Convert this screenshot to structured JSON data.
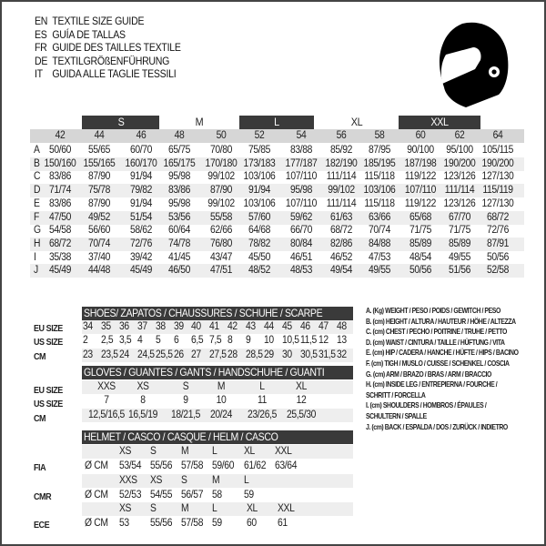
{
  "titles": [
    {
      "code": "EN",
      "text": "TEXTILE SIZE GUIDE"
    },
    {
      "code": "ES",
      "text": "GUÍA DE TALLAS"
    },
    {
      "code": "FR",
      "text": "GUIDE DES TAILLES TEXTILE"
    },
    {
      "code": "DE",
      "text": "TEXTILGRÖßENFÜHRUNG"
    },
    {
      "code": "IT",
      "text": "GUIDA ALLE TAGLIE TESSILI"
    }
  ],
  "icon": "helmet-icon",
  "colors": {
    "dark": "#3a3a3a",
    "grey": "#d6d6d6",
    "light": "#eeeeee"
  },
  "textile": {
    "size_groups": [
      "S",
      "M",
      "L",
      "XL",
      "XXL"
    ],
    "sizes": [
      "42",
      "44",
      "46",
      "48",
      "50",
      "52",
      "54",
      "56",
      "58",
      "60",
      "62",
      "64"
    ],
    "rows": [
      {
        "letter": "A",
        "values": [
          "50/60",
          "55/65",
          "60/70",
          "65/75",
          "70/80",
          "75/85",
          "83/88",
          "85/92",
          "87/95",
          "90/100",
          "95/100",
          "105/115"
        ]
      },
      {
        "letter": "B",
        "values": [
          "150/160",
          "155/165",
          "160/170",
          "165/175",
          "170/180",
          "173/183",
          "177/187",
          "182/190",
          "185/195",
          "187/198",
          "190/200",
          "190/200"
        ]
      },
      {
        "letter": "C",
        "values": [
          "83/86",
          "87/90",
          "91/94",
          "95/98",
          "99/102",
          "103/106",
          "107/110",
          "111/114",
          "115/118",
          "119/122",
          "123/126",
          "127/130"
        ]
      },
      {
        "letter": "D",
        "values": [
          "71/74",
          "75/78",
          "79/82",
          "83/86",
          "87/90",
          "91/94",
          "95/98",
          "99/102",
          "103/106",
          "107/110",
          "111/114",
          "115/119"
        ]
      },
      {
        "letter": "E",
        "values": [
          "83/86",
          "87/90",
          "91/94",
          "95/98",
          "99/102",
          "103/106",
          "107/110",
          "111/114",
          "115/118",
          "119/122",
          "123/126",
          "127/130"
        ]
      },
      {
        "letter": "F",
        "values": [
          "47/50",
          "49/52",
          "51/54",
          "53/56",
          "55/58",
          "57/60",
          "59/62",
          "61/63",
          "63/66",
          "65/68",
          "67/70",
          "68/72"
        ]
      },
      {
        "letter": "G",
        "values": [
          "54/58",
          "56/60",
          "58/62",
          "60/64",
          "62/66",
          "64/68",
          "66/70",
          "68/72",
          "70/74",
          "71/75",
          "71/75",
          "72/76"
        ]
      },
      {
        "letter": "H",
        "values": [
          "68/72",
          "70/74",
          "72/76",
          "74/78",
          "76/80",
          "78/82",
          "80/84",
          "82/86",
          "84/88",
          "85/89",
          "85/89",
          "87/91"
        ]
      },
      {
        "letter": "I",
        "values": [
          "35/38",
          "37/40",
          "39/42",
          "41/45",
          "43/47",
          "45/50",
          "46/51",
          "46/52",
          "47/53",
          "48/54",
          "49/55",
          "50/56"
        ]
      },
      {
        "letter": "J",
        "values": [
          "45/49",
          "44/48",
          "45/49",
          "46/50",
          "47/51",
          "48/52",
          "48/53",
          "49/54",
          "49/55",
          "50/56",
          "51/56",
          "52/58"
        ]
      }
    ]
  },
  "shoes": {
    "title": "SHOES/ ZAPATOS / CHAUSSURES / SCHUHE / SCARPE",
    "rows": [
      {
        "label": "EU SIZE",
        "values": [
          "34",
          "35",
          "36",
          "37",
          "38",
          "39",
          "40",
          "41",
          "42",
          "43",
          "44",
          "45",
          "46",
          "47",
          "48"
        ]
      },
      {
        "label": "US SIZE",
        "values": [
          "2",
          "2,5",
          "3,5",
          "4",
          "5",
          "6",
          "6,5",
          "7,5",
          "8",
          "9",
          "10",
          "10,5",
          "11,5",
          "12",
          "13"
        ]
      },
      {
        "label": "CM",
        "values": [
          "23",
          "23,5",
          "24",
          "24,5",
          "25,5",
          "26",
          "27",
          "27,5",
          "28",
          "28,5",
          "29",
          "30",
          "30,5",
          "31,5",
          "32"
        ]
      }
    ]
  },
  "gloves": {
    "title": "GLOVES / GUANTES / GANTS / HANDSCHUHE / GUANTI",
    "rows": [
      {
        "label": "EU SIZE",
        "values": [
          "XXS",
          "XS",
          "S",
          "M",
          "L",
          "XL"
        ]
      },
      {
        "label": "US SIZE",
        "values": [
          "7",
          "8",
          "9",
          "10",
          "11",
          "12"
        ]
      },
      {
        "label": "CM",
        "values": [
          "12,5/16,5",
          "16,5/19",
          "18/21,5",
          "20/24",
          "23/26,5",
          "25,5/30"
        ]
      }
    ]
  },
  "helmet": {
    "title": "HELMET / CASCO / CASQUE / HELM / CASCO",
    "groups": [
      {
        "label": "FIA",
        "unit": "Ø CM",
        "sizes": [
          "XS",
          "S",
          "M",
          "L",
          "XL",
          "XXL"
        ],
        "values": [
          "53/54",
          "55/56",
          "57/58",
          "59/60",
          "61/62",
          "63/64"
        ]
      },
      {
        "label": "CMR",
        "unit": "Ø CM",
        "sizes": [
          "XXS",
          "XS",
          "S",
          "M",
          "L"
        ],
        "values": [
          "52/53",
          "54/55",
          "56/57",
          "58",
          "59"
        ]
      },
      {
        "label": "ECE",
        "unit": "Ø CM",
        "sizes": [
          "XS",
          "S",
          "M",
          "L",
          "XL",
          "XXL"
        ],
        "values": [
          "53",
          "55/56",
          "57/58",
          "59",
          "60",
          "61"
        ]
      }
    ]
  },
  "legend": [
    "A. (Kg) WEIGHT / PESO / POIDS / GEWITCH / PESO",
    "B. (cm) HEIGHT / ALTURA / HAUTEUR / HÖHE / ALTEZZA",
    "C. (cm) CHEST / PECHO / POITRINE / TRUHE / PETTO",
    "D. (cm) WAIST / CINTURA / TAILLE / HÜFTUNG / VITA",
    "E. (cm) HIP / CADERA / HANCHE / HÜFTE / HIPS / BACINO",
    "F. (cm) TIGH / MUSLO / CUISSE / SCHENKEL / COSCIA",
    "G. (cm) ARM / BRAZO / BRAS / ARM / BRACCIO",
    "H. (cm) INSIDE LEG / ENTREPIERNA / FOURCHE /",
    "SCHRITT / FORCELLA",
    "I. (cm) SHOULDERS / HOMBROS / ÉPAULES /",
    "SCHULTERN / SPALLE",
    "J. (cm) BACK / ESPALDA / DOS / ZURÜCK / INDIETRO"
  ]
}
